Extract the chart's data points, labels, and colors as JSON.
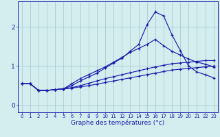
{
  "xlabel": "Graphe des températures (°c)",
  "x_values": [
    0,
    1,
    2,
    3,
    4,
    5,
    6,
    7,
    8,
    9,
    10,
    11,
    12,
    13,
    14,
    15,
    16,
    17,
    18,
    19,
    20,
    21,
    22,
    23
  ],
  "line1": [
    0.55,
    0.55,
    0.38,
    0.38,
    0.4,
    0.42,
    0.55,
    0.68,
    0.78,
    0.88,
    0.98,
    1.1,
    1.22,
    1.35,
    1.45,
    1.55,
    1.68,
    1.52,
    1.38,
    1.28,
    1.18,
    1.1,
    1.05,
    0.98
  ],
  "line2": [
    0.55,
    0.55,
    0.38,
    0.38,
    0.4,
    0.42,
    0.5,
    0.62,
    0.72,
    0.82,
    0.95,
    1.08,
    1.2,
    1.38,
    1.55,
    2.05,
    2.38,
    2.28,
    1.8,
    1.4,
    1.0,
    0.85,
    0.78,
    0.7
  ],
  "line3": [
    0.55,
    0.55,
    0.38,
    0.38,
    0.4,
    0.42,
    0.45,
    0.5,
    0.56,
    0.62,
    0.68,
    0.73,
    0.78,
    0.83,
    0.88,
    0.93,
    0.98,
    1.02,
    1.06,
    1.08,
    1.1,
    1.12,
    1.14,
    1.14
  ],
  "line4": [
    0.55,
    0.55,
    0.38,
    0.38,
    0.4,
    0.42,
    0.44,
    0.47,
    0.5,
    0.54,
    0.58,
    0.62,
    0.66,
    0.7,
    0.74,
    0.78,
    0.82,
    0.86,
    0.9,
    0.92,
    0.94,
    0.96,
    0.98,
    1.0
  ],
  "line_color": "#1a1aaa",
  "bg_color": "#d4eef0",
  "grid_color": "#a8ccd0",
  "ylim": [
    -0.18,
    2.65
  ],
  "yticks": [
    0,
    1,
    2
  ],
  "xlim": [
    -0.5,
    23.5
  ],
  "xtick_fontsize": 5.0,
  "ytick_fontsize": 6.5,
  "xlabel_fontsize": 6.5
}
